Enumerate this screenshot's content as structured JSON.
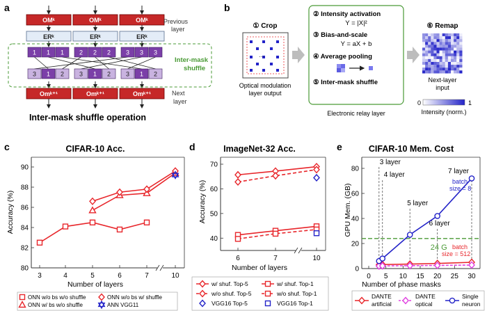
{
  "panel_a": {
    "letter": "a",
    "om_label": "OMᵏ",
    "er_label": "ERᵏ",
    "out_label": "Omᵏ⁺¹",
    "top_cells": [
      "1",
      "1",
      "1",
      "2",
      "2",
      "2",
      "3",
      "3",
      "3"
    ],
    "bottom_cells": [
      "3",
      "1",
      "2",
      "3",
      "1",
      "2",
      "3",
      "1",
      "2"
    ],
    "previous_layer": [
      "Previous",
      "layer"
    ],
    "inter_mask": [
      "Inter-mask",
      "shuffle"
    ],
    "next_layer": [
      "Next",
      "layer"
    ],
    "caption": "Inter-mask shuffle operation"
  },
  "panel_b": {
    "letter": "b",
    "crop_title": "① Crop",
    "crop_caption": [
      "Optical modulation",
      "layer output"
    ],
    "steps": {
      "s2": "② Intensity activation",
      "s2_eq": "Y = |X|²",
      "s3": "③ Bias-and-scale",
      "s3_eq": "Y = aX + b",
      "s4": "④ Average pooling",
      "s5": "⑤ Inter-mask shuffle"
    },
    "relay_caption": "Electronic relay layer",
    "remap_title": "⑥ Remap",
    "remap_caption": [
      "Next-layer",
      "input"
    ],
    "cbar_min": "0",
    "cbar_max": "1",
    "cbar_label": "Intensity (norm.)"
  },
  "chart_data": [
    {
      "panel": "c",
      "type": "line",
      "title": "CIFAR-10 Acc.",
      "xlabel": "Number of layers",
      "ylabel": "Accuracy (%)",
      "xticks": [
        "3",
        "4",
        "5",
        "6",
        "7",
        "10"
      ],
      "ylim": [
        80,
        90
      ],
      "yticks": [
        "80",
        "82",
        "84",
        "86",
        "88",
        "90"
      ],
      "series": [
        {
          "name": "ONN w/o bs w/o shuffle",
          "marker": "square",
          "x": [
            3,
            4,
            5,
            6,
            7
          ],
          "values": [
            82.5,
            84.1,
            84.5,
            83.8,
            84.5
          ]
        },
        {
          "name": "ONN w/ bs w/o shuffle",
          "marker": "triangle",
          "x": [
            5,
            6,
            7,
            10
          ],
          "values": [
            85.7,
            87.2,
            87.4,
            89.4
          ]
        },
        {
          "name": "ONN w/o bs w/ shuffle",
          "marker": "diamond",
          "x": [
            5,
            6,
            7,
            10
          ],
          "values": [
            86.6,
            87.5,
            87.8,
            89.6
          ]
        },
        {
          "name": "ANN VGG11",
          "marker": "star",
          "x": [
            10
          ],
          "values": [
            89.2
          ]
        }
      ]
    },
    {
      "panel": "d",
      "type": "line",
      "title": "ImageNet-32 Acc.",
      "xlabel": "Number of layers",
      "ylabel": "Accuracy (%)",
      "xticks": [
        "6",
        "7",
        "10"
      ],
      "ylim": [
        35,
        70
      ],
      "yticks": [
        "40",
        "50",
        "60",
        "70"
      ],
      "series": [
        {
          "name": "w/ shuf. Top-5",
          "marker": "diamond",
          "x": [
            6,
            7,
            10
          ],
          "values": [
            65.7,
            67.2,
            69.0
          ]
        },
        {
          "name": "w/o shuf. Top-5",
          "marker": "diamond",
          "x": [
            6,
            7,
            10
          ],
          "values": [
            62.8,
            65.3,
            67.8
          ]
        },
        {
          "name": "VGG16 Top-5",
          "marker": "diamond",
          "x": [
            10
          ],
          "values": [
            64.5
          ]
        },
        {
          "name": "w/ shuf. Top-1",
          "marker": "square",
          "x": [
            6,
            7,
            10
          ],
          "values": [
            41.3,
            43.0,
            44.8
          ]
        },
        {
          "name": "w/o shuf. Top-1",
          "marker": "square",
          "x": [
            6,
            7,
            10
          ],
          "values": [
            39.7,
            41.8,
            43.5
          ]
        },
        {
          "name": "VGG16 Top-1",
          "marker": "square",
          "x": [
            10
          ],
          "values": [
            42.0
          ]
        }
      ]
    },
    {
      "panel": "e",
      "type": "line",
      "title": "CIFAR-10 Mem. Cost",
      "xlabel": "Number of phase masks",
      "ylabel": "GPU Mem. (GB)",
      "xlim": [
        0,
        30
      ],
      "xticks": [
        "0",
        "5",
        "10",
        "15",
        "20",
        "25",
        "30"
      ],
      "ylim": [
        0,
        80
      ],
      "yticks": [
        "0",
        "20",
        "40",
        "60",
        "80"
      ],
      "series": [
        {
          "name": "DANTE artificial",
          "marker": "diamond",
          "x": [
            3,
            4,
            12,
            20,
            30
          ],
          "values": [
            3.0,
            3.2,
            3.6,
            4.1,
            5.0
          ]
        },
        {
          "name": "DANTE optical",
          "marker": "diamond",
          "x": [
            3,
            4,
            12,
            20,
            30
          ],
          "values": [
            2.0,
            2.1,
            2.3,
            2.5,
            2.8
          ]
        },
        {
          "name": "Single neuron",
          "marker": "circle",
          "x": [
            3,
            4,
            12,
            20,
            30
          ],
          "values": [
            6,
            8,
            27,
            42,
            72
          ]
        }
      ],
      "annotations": {
        "layers": [
          "3 layer",
          "4 layer",
          "5 layer",
          "6 layer",
          "7 layer"
        ],
        "limit": "24 G",
        "limit_value": 24,
        "batch8": [
          "batch",
          "size = 8"
        ],
        "batch512": [
          "batch",
          "size = 512"
        ]
      }
    }
  ],
  "legend_c": [
    "ONN w/o bs w/o shuffle",
    "ONN w/o bs w/ shuffle",
    "ONN w/ bs w/o shuffle",
    "ANN VGG11"
  ],
  "legend_d": [
    "w/ shuf. Top-5",
    "w/ shuf. Top-1",
    "w/o shuf. Top-5",
    "w/o shuf. Top-1",
    "VGG16 Top-5",
    "VGG16 Top-1"
  ],
  "legend_e": [
    [
      "DANTE",
      "artificial"
    ],
    [
      "DANTE",
      "optical"
    ],
    [
      "Single",
      "neuron"
    ]
  ],
  "colors": {
    "red": "#e8262b",
    "blue": "#2323c8",
    "magenta": "#e040e0",
    "dark_red": "#c62828",
    "purple": "#7b3fa8",
    "light_purple": "#c9b3e0",
    "green": "#4a9a36"
  }
}
